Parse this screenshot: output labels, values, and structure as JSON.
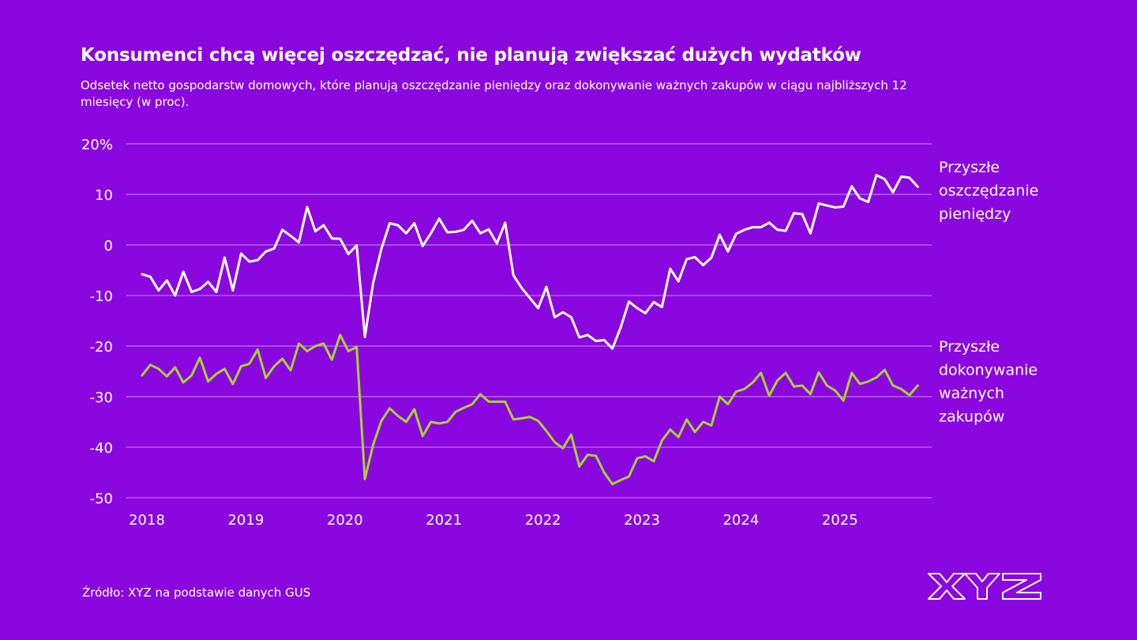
{
  "chart_data": {
    "type": "line",
    "title": "Konsumenci chcą więcej oszczędzać, nie planują zwiększać dużych wydatków",
    "subtitle": "Odsetek netto gospodarstw domowych, które planują oszczędzanie pieniędzy oraz dokonywanie ważnych zakupów w ciągu najbliższych 12 miesięcy (w proc).",
    "source": "Źródło: XYZ na podstawie danych GUS",
    "xlabel": "",
    "ylabel": "",
    "x_start": 2018.0,
    "x_step": 0.0833333,
    "xlim": [
      2018.0,
      2026.0
    ],
    "ylim": [
      -50,
      20
    ],
    "y_ticks": [
      20,
      10,
      0,
      -10,
      -20,
      -30,
      -40,
      -50
    ],
    "y_tick_labels": [
      "20%",
      "10",
      "0",
      "-10",
      "-20",
      "-30",
      "-40",
      "-50"
    ],
    "x_ticks": [
      2018,
      2019,
      2020,
      2021,
      2022,
      2023,
      2024,
      2025
    ],
    "x_tick_labels": [
      "2018",
      "2019",
      "2020",
      "2021",
      "2022",
      "2023",
      "2024",
      "2025"
    ],
    "grid": "horizontal",
    "series": [
      {
        "name": "Przyszłe oszczędzanie pieniędzy",
        "legend_lines": [
          "Przyszłe",
          "oszczędzanie",
          "pieniędzy"
        ],
        "color": "#ffffff",
        "values": [
          -5.8,
          -6.3,
          -9.0,
          -7.0,
          -10.0,
          -5.3,
          -9.3,
          -8.7,
          -7.3,
          -9.3,
          -2.5,
          -9.0,
          -1.7,
          -3.3,
          -3.0,
          -1.3,
          -0.7,
          3.0,
          1.8,
          0.5,
          7.5,
          2.7,
          3.9,
          1.3,
          1.2,
          -1.8,
          -0.1,
          -18.2,
          -7.5,
          -0.8,
          4.3,
          3.9,
          2.3,
          4.3,
          -0.2,
          2.3,
          5.2,
          2.5,
          2.6,
          3.0,
          4.8,
          2.3,
          3.1,
          0.3,
          4.4,
          -6.0,
          -8.5,
          -10.5,
          -12.5,
          -8.3,
          -14.3,
          -13.3,
          -14.3,
          -18.3,
          -17.8,
          -19.0,
          -18.8,
          -20.5,
          -16.3,
          -11.2,
          -12.5,
          -13.5,
          -11.3,
          -12.3,
          -4.7,
          -7.2,
          -2.8,
          -2.4,
          -4.0,
          -2.5,
          2.0,
          -1.3,
          2.2,
          3.0,
          3.5,
          3.5,
          4.4,
          3.0,
          2.8,
          6.3,
          6.1,
          2.3,
          8.2,
          7.8,
          7.4,
          7.6,
          11.6,
          9.2,
          8.5,
          13.8,
          13.0,
          10.4,
          13.5,
          13.3,
          11.5
        ]
      },
      {
        "name": "Przyszłe dokonywanie ważnych zakupów",
        "legend_lines": [
          "Przyszłe",
          "dokonywanie",
          "ważnych",
          "zakupów"
        ],
        "color": "#a6d332",
        "values": [
          -25.8,
          -23.7,
          -24.5,
          -26.0,
          -24.2,
          -27.2,
          -25.8,
          -22.3,
          -27.0,
          -25.5,
          -24.5,
          -27.5,
          -24.0,
          -23.5,
          -20.7,
          -26.3,
          -24.0,
          -22.5,
          -24.8,
          -19.5,
          -21.0,
          -20.0,
          -19.5,
          -22.7,
          -17.8,
          -21.0,
          -20.2,
          -46.3,
          -39.5,
          -34.8,
          -32.3,
          -33.8,
          -35.0,
          -32.5,
          -37.8,
          -35.0,
          -35.3,
          -35.0,
          -33.0,
          -32.2,
          -31.5,
          -29.5,
          -31.0,
          -31.0,
          -31.0,
          -34.5,
          -34.3,
          -34.0,
          -34.8,
          -36.8,
          -39.0,
          -40.2,
          -37.5,
          -43.8,
          -41.5,
          -41.7,
          -45.0,
          -47.3,
          -46.5,
          -45.8,
          -42.2,
          -41.8,
          -42.8,
          -38.7,
          -36.5,
          -38.0,
          -34.5,
          -37.0,
          -35.0,
          -35.7,
          -30.0,
          -31.5,
          -29.0,
          -28.5,
          -27.2,
          -25.3,
          -29.8,
          -26.8,
          -25.3,
          -28.0,
          -27.8,
          -29.5,
          -25.2,
          -27.8,
          -28.8,
          -30.8,
          -25.3,
          -27.5,
          -27.0,
          -26.2,
          -24.7,
          -27.8,
          -28.5,
          -29.7,
          -27.8
        ]
      }
    ]
  }
}
